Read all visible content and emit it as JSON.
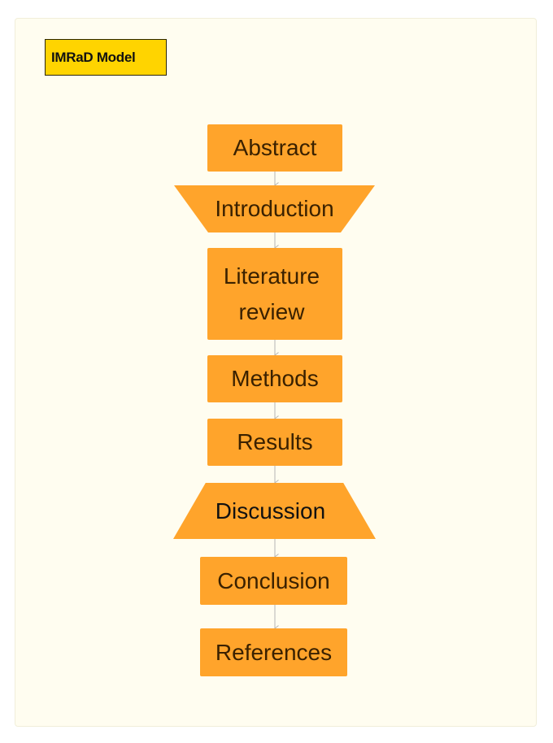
{
  "diagram": {
    "title": "IMRaD Model",
    "nodes": [
      {
        "id": "abstract",
        "label": "Abstract",
        "shape": "rectangle"
      },
      {
        "id": "introduction",
        "label": "Introduction",
        "shape": "inverted-trapezoid"
      },
      {
        "id": "literature_review",
        "label": "Literature\nreview",
        "shape": "rectangle"
      },
      {
        "id": "methods",
        "label": "Methods",
        "shape": "rectangle"
      },
      {
        "id": "results",
        "label": "Results",
        "shape": "rectangle"
      },
      {
        "id": "discussion",
        "label": "Discussion",
        "shape": "trapezoid"
      },
      {
        "id": "conclusion",
        "label": "Conclusion",
        "shape": "rectangle"
      },
      {
        "id": "references",
        "label": "References",
        "shape": "rectangle"
      }
    ],
    "edges": [
      {
        "from": "abstract",
        "to": "introduction"
      },
      {
        "from": "introduction",
        "to": "literature_review"
      },
      {
        "from": "literature_review",
        "to": "methods"
      },
      {
        "from": "methods",
        "to": "results"
      },
      {
        "from": "results",
        "to": "discussion"
      },
      {
        "from": "discussion",
        "to": "conclusion"
      },
      {
        "from": "conclusion",
        "to": "references"
      }
    ],
    "colors": {
      "node_fill": "#ffa42b",
      "title_fill": "#ffd400",
      "background": "#fffdf0",
      "connector": "#b5b5b5"
    }
  }
}
